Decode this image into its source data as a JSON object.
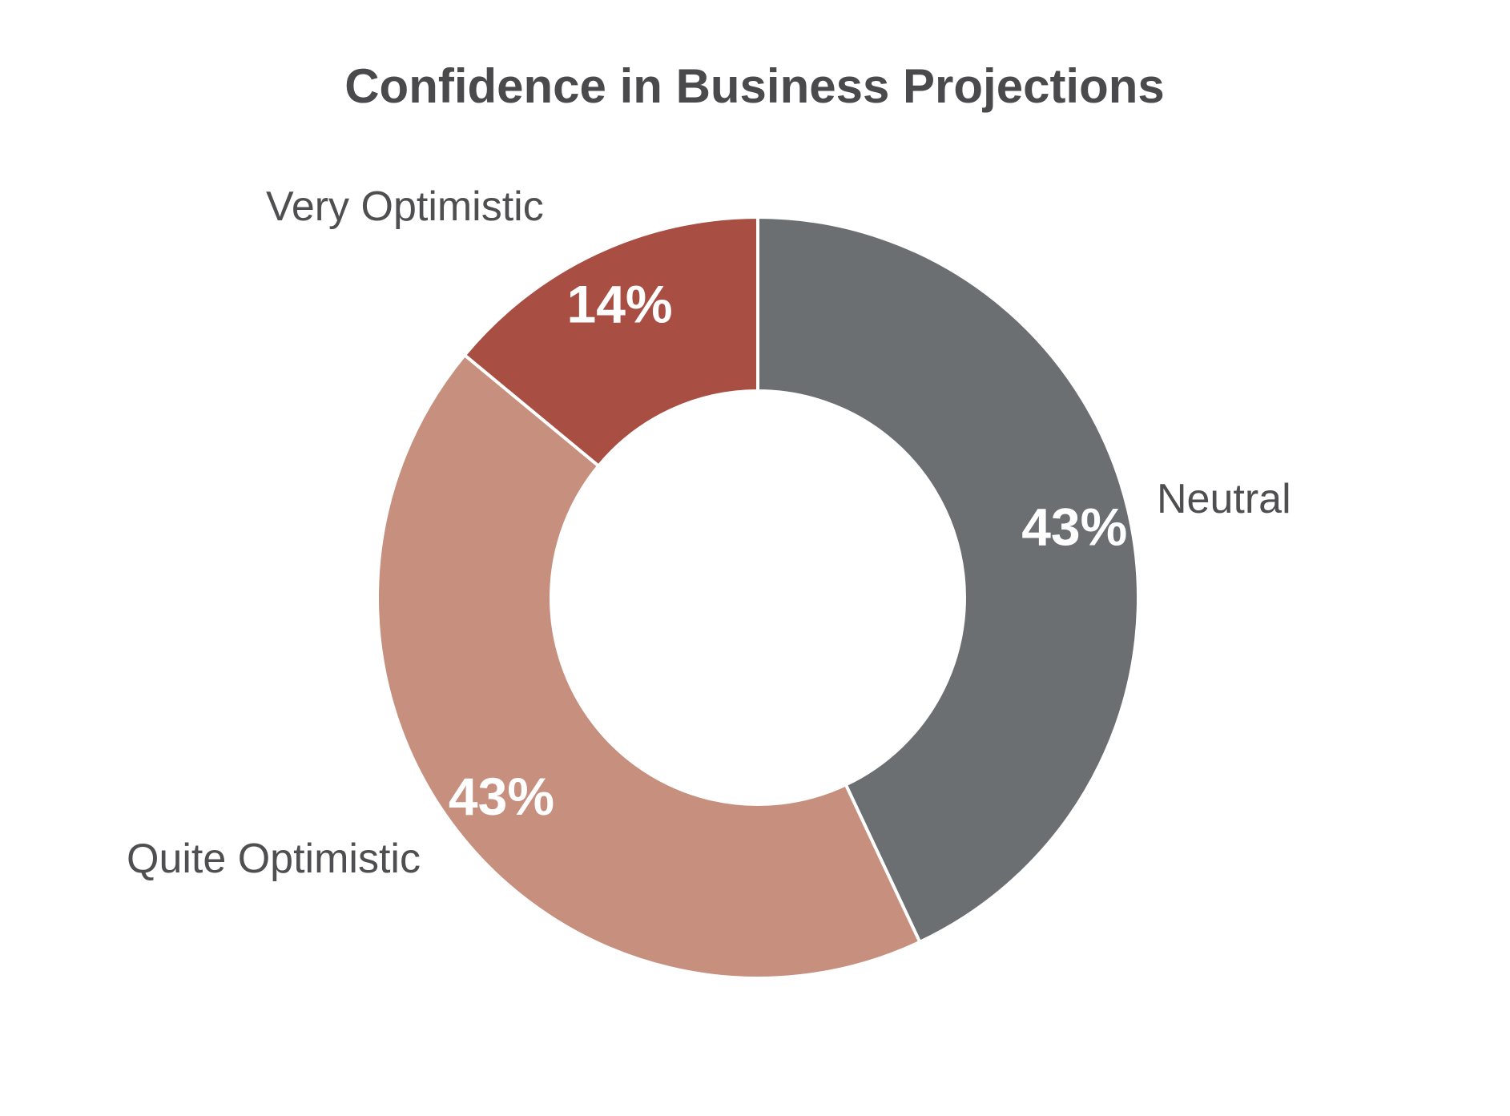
{
  "chart_data": {
    "type": "pie",
    "variant": "donut",
    "title": "Confidence in Business Projections",
    "start": "12 o'clock",
    "direction": "clockwise",
    "labels_shown": "category names outside, percentages inside slices",
    "slices": [
      {
        "label": "Neutral",
        "value": 43,
        "value_label": "43%",
        "color": "#6c6f72"
      },
      {
        "label": "Quite Optimistic",
        "value": 43,
        "value_label": "43%",
        "color": "#c68f7e"
      },
      {
        "label": "Very Optimistic",
        "value": 14,
        "value_label": "14%",
        "color": "#a84e43"
      }
    ]
  }
}
